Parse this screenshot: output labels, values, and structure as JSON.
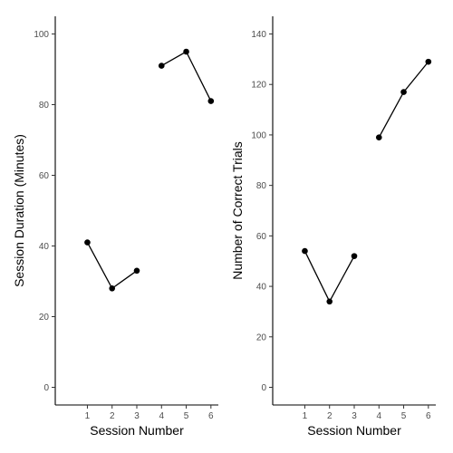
{
  "chart_data": [
    {
      "type": "line",
      "xlabel": "Session Number",
      "ylabel": "Session Duration (Minutes)",
      "xlim": [
        -0.3,
        6.3
      ],
      "ylim": [
        -5,
        105
      ],
      "x_ticks": [
        1,
        2,
        3,
        4,
        5,
        6
      ],
      "y_ticks": [
        0,
        20,
        40,
        60,
        80,
        100
      ],
      "grid": false,
      "series": [
        {
          "x": [
            1,
            2,
            3
          ],
          "y": [
            41,
            28,
            33
          ]
        },
        {
          "x": [
            4,
            5,
            6
          ],
          "y": [
            91,
            95,
            81
          ]
        }
      ]
    },
    {
      "type": "line",
      "xlabel": "Session Number",
      "ylabel": "Number of Correct Trials",
      "xlim": [
        -0.3,
        6.3
      ],
      "ylim": [
        -7,
        147
      ],
      "x_ticks": [
        1,
        2,
        3,
        4,
        5,
        6
      ],
      "y_ticks": [
        0,
        20,
        40,
        60,
        80,
        100,
        120,
        140
      ],
      "grid": false,
      "series": [
        {
          "x": [
            1,
            2,
            3
          ],
          "y": [
            54,
            34,
            52
          ]
        },
        {
          "x": [
            4,
            5,
            6
          ],
          "y": [
            99,
            117,
            129
          ]
        }
      ]
    }
  ]
}
